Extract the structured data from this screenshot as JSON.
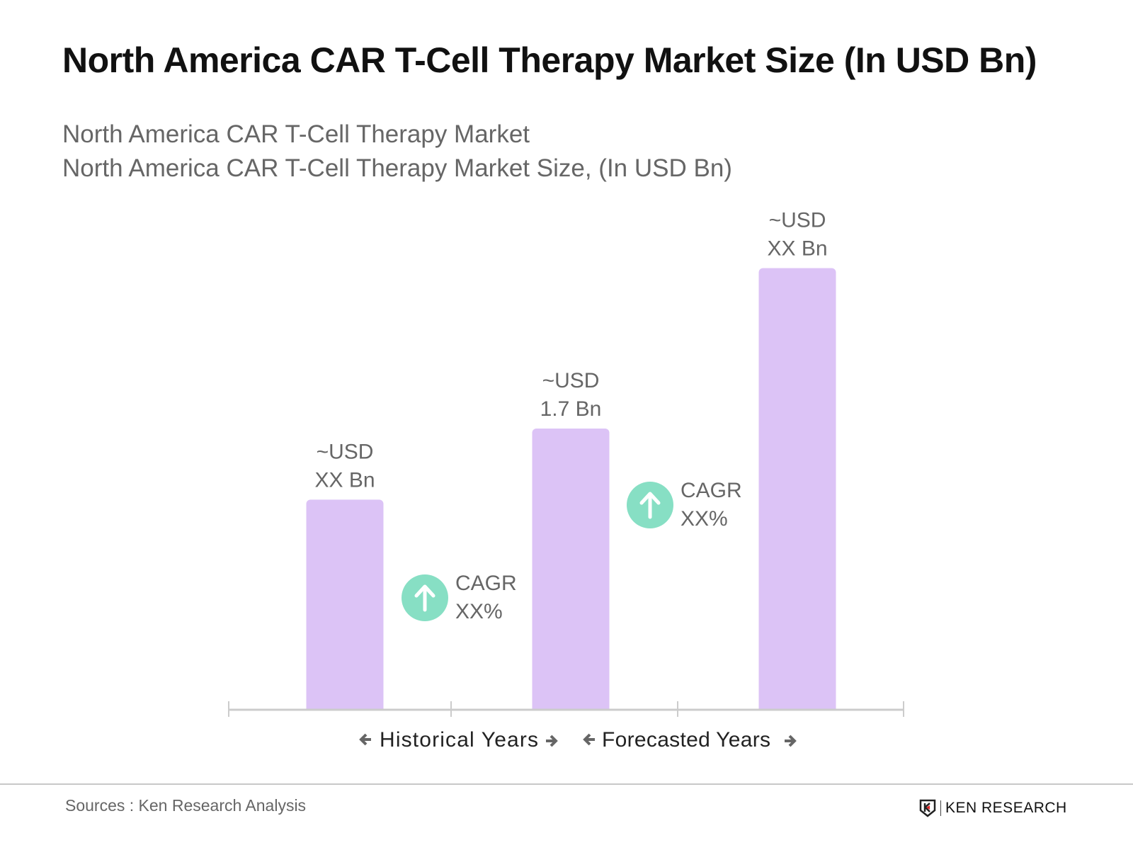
{
  "title": "North America CAR T-Cell Therapy Market Size (In USD Bn)",
  "subtitle_lines": [
    "North America CAR T-Cell Therapy Market",
    "North America CAR T-Cell Therapy Market Size, (In USD Bn)"
  ],
  "chart_data": {
    "type": "bar",
    "categories": [
      "",
      "",
      ""
    ],
    "values": [
      1.27,
      1.7,
      2.67
    ],
    "data_labels": [
      [
        "~USD",
        "XX Bn"
      ],
      [
        "~USD",
        "1.7 Bn"
      ],
      [
        "~USD",
        "XX Bn"
      ]
    ],
    "annotations": [
      {
        "icon": "arrow-up-circle-icon",
        "lines": [
          "CAGR",
          "XX%"
        ]
      },
      {
        "icon": "arrow-up-circle-icon",
        "lines": [
          "CAGR",
          "XX%"
        ]
      }
    ],
    "period_labels": [
      "Historical Years",
      "Forecasted Years"
    ],
    "ylim": [
      0,
      3
    ],
    "grid": false,
    "colors": {
      "bar": "#dcc3f6",
      "cagr_icon": "#87dfc4",
      "axis": "#cccccc",
      "label": "#666666"
    }
  },
  "footer": {
    "source": "Sources : Ken Research Analysis",
    "logo_text": "KEN RESEARCH"
  }
}
